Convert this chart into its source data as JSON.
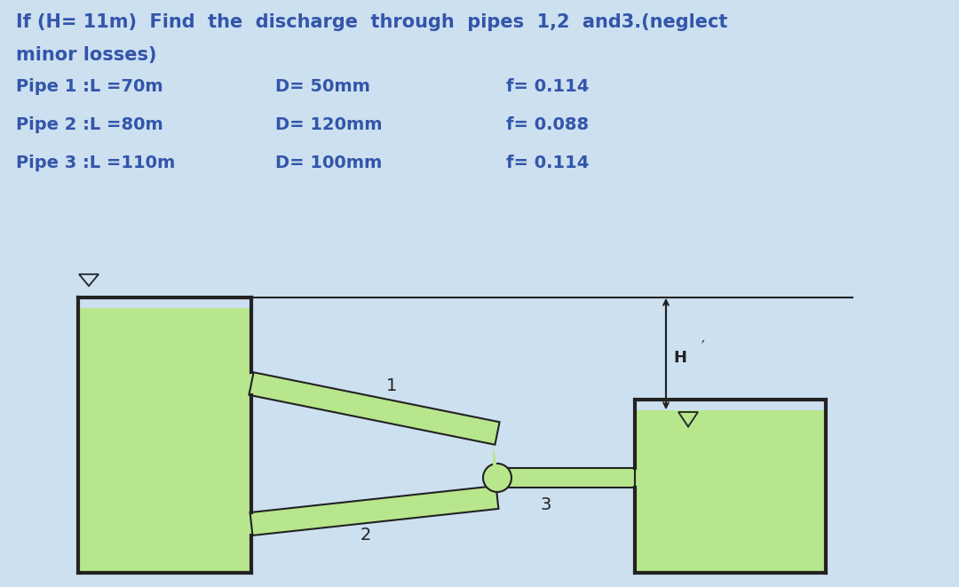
{
  "bg_color": "#cce0f0",
  "text_color": "#3355aa",
  "dark_color": "#222222",
  "green_fill": "#b8e68c",
  "title_text": "If (H= 11m) Find the discharge through pipes 1,2 and3.(neglect\nminor losses)",
  "pipe1_text": "Pipe 1 :L =70m",
  "pipe2_text": "Pipe 2 :L =80m",
  "pipe3_text": "Pipe 3 :L =110m",
  "d1_text": "D= 50mm",
  "d2_text": "D= 120mm",
  "d3_text": "D= 100mm",
  "f1_text": "f= 0.114",
  "f2_text": "f= 0.088",
  "f3_text": "f= 0.114",
  "label1": "1",
  "label2": "2",
  "label3": "3",
  "label_H": "H",
  "font_size_title": 15,
  "font_size_text": 14,
  "font_size_label": 12
}
